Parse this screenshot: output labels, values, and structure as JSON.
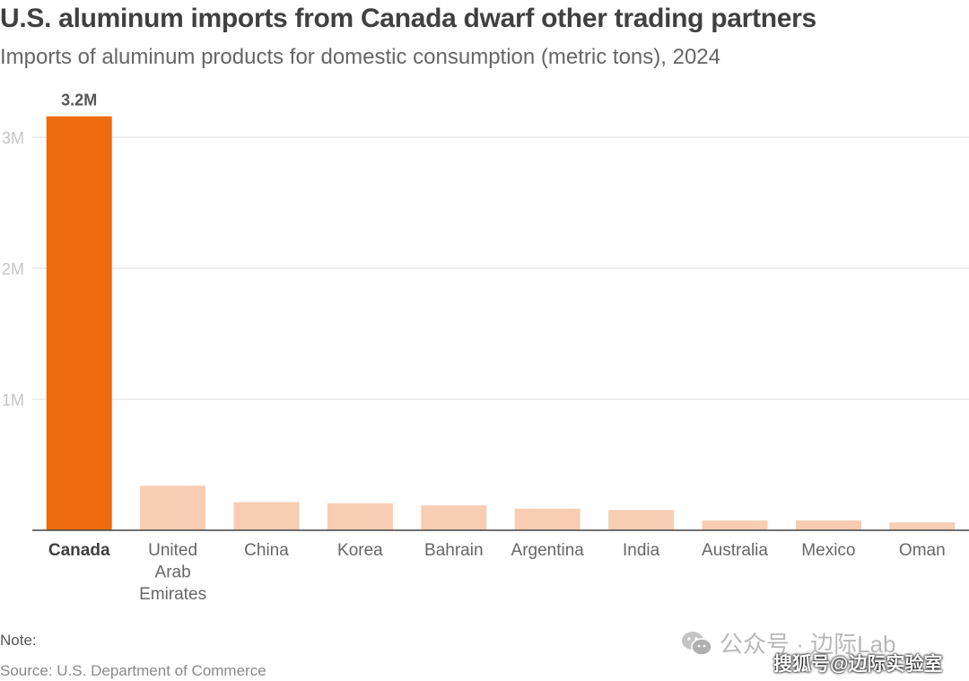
{
  "title": "U.S. aluminum imports from Canada dwarf other trading partners",
  "subtitle": "Imports of aluminum products for domestic consumption (metric tons), 2024",
  "note": "Note:",
  "source": "Source: U.S. Department of Commerce",
  "watermark": {
    "line1": "公众号 · 边际Lab",
    "line2": "搜狐号@边际实验室",
    "icon": "wechat-icon"
  },
  "colors": {
    "highlight": "#ee6b0e",
    "bar": "#f8cdb3",
    "grid": "#dddddd",
    "tick_label": "#c4c4c4",
    "category_label": "#666666",
    "highlight_label": "#404040"
  },
  "chart_data": {
    "type": "bar",
    "title": "U.S. aluminum imports from Canada dwarf other trading partners",
    "subtitle": "Imports of aluminum products for domestic consumption (metric tons), 2024",
    "categories": [
      [
        "Canada"
      ],
      [
        "United",
        "Arab",
        "Emirates"
      ],
      [
        "China"
      ],
      [
        "Korea"
      ],
      [
        "Bahrain"
      ],
      [
        "Argentina"
      ],
      [
        "India"
      ],
      [
        "Australia"
      ],
      [
        "Mexico"
      ],
      [
        "Oman"
      ]
    ],
    "values": [
      3160000,
      340000,
      215000,
      205000,
      190000,
      165000,
      155000,
      75000,
      75000,
      60000
    ],
    "highlight_index": 0,
    "data_labels": [
      "3.2M",
      "",
      "",
      "",
      "",
      "",
      "",
      "",
      "",
      ""
    ],
    "ylim": [
      0,
      3000000
    ],
    "yticks": [
      1000000,
      2000000,
      3000000
    ],
    "ytick_labels": [
      "1M",
      "2M",
      "3M"
    ],
    "grid": true,
    "legend": "none",
    "xlabel": "",
    "ylabel": ""
  }
}
